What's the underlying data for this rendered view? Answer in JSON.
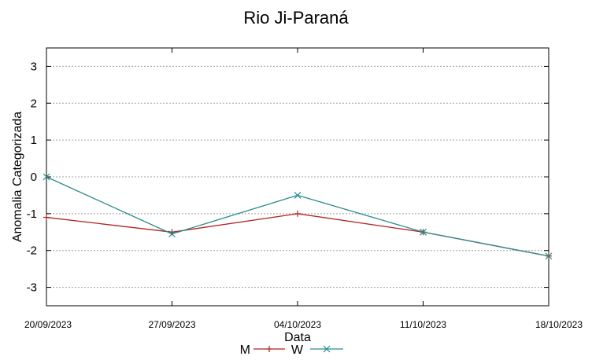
{
  "chart_data": {
    "type": "line",
    "title": "Rio Ji-Paraná",
    "xlabel": "Data",
    "ylabel": "Anomalia Categorizada",
    "categories": [
      "20/09/2023",
      "27/09/2023",
      "04/10/2023",
      "11/10/2023",
      "18/10/2023"
    ],
    "ylim": [
      -3.5,
      3.5
    ],
    "yticks": [
      3,
      2,
      1,
      0,
      -1,
      -2,
      -3
    ],
    "grid": true,
    "legend_position": "bottom",
    "series": [
      {
        "name": "M",
        "color": "#b22222",
        "marker": "plus",
        "values": [
          -1.1,
          -1.5,
          -1.0,
          -1.5,
          -2.15
        ]
      },
      {
        "name": "W",
        "color": "#2a8c8c",
        "marker": "cross",
        "values": [
          0.0,
          -1.55,
          -0.5,
          -1.5,
          -2.15
        ]
      }
    ]
  }
}
